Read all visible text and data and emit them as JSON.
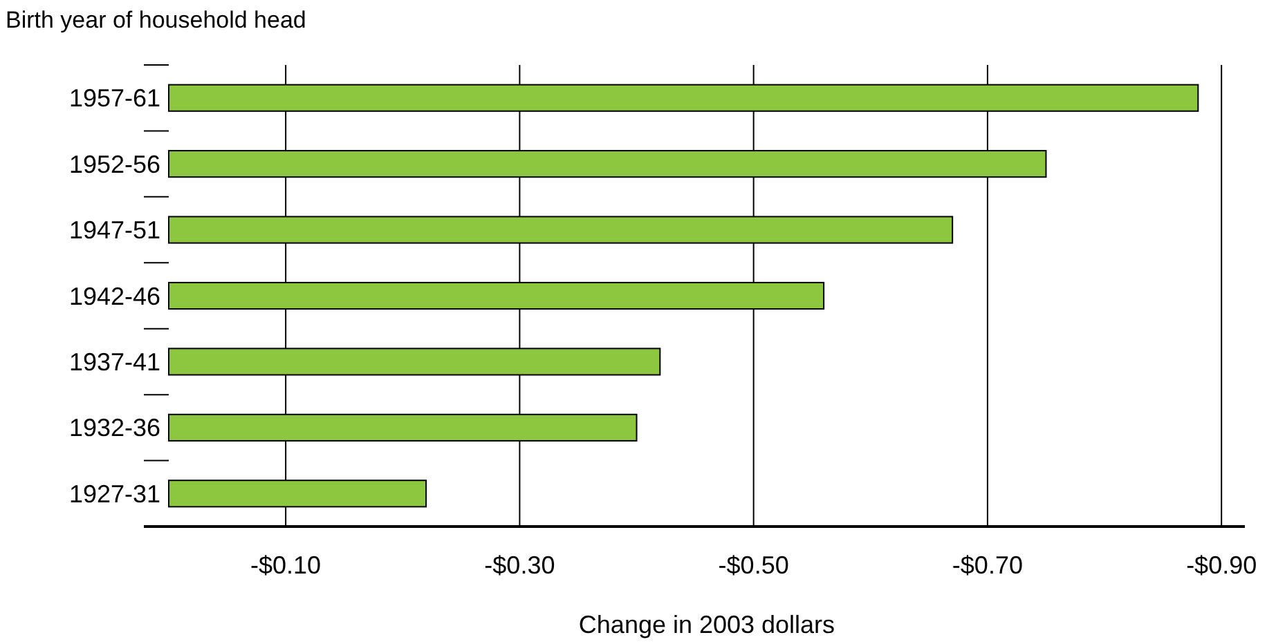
{
  "chart_data": {
    "type": "bar",
    "orientation": "horizontal",
    "ylabel": "Birth year of household head",
    "xlabel": "Change in 2003 dollars",
    "categories": [
      "1957-61",
      "1952-56",
      "1947-51",
      "1942-46",
      "1937-41",
      "1932-36",
      "1927-31"
    ],
    "values": [
      -0.88,
      -0.75,
      -0.67,
      -0.56,
      -0.42,
      -0.4,
      -0.22
    ],
    "color": "#8dc63f",
    "xlim": [
      0,
      -0.92
    ],
    "xticks": [
      {
        "value": -0.1,
        "label": "-$0.10"
      },
      {
        "value": -0.3,
        "label": "-$0.30"
      },
      {
        "value": -0.5,
        "label": "-$0.50"
      },
      {
        "value": -0.7,
        "label": "-$0.70"
      },
      {
        "value": -0.9,
        "label": "-$0.90"
      }
    ],
    "grid": "x"
  }
}
